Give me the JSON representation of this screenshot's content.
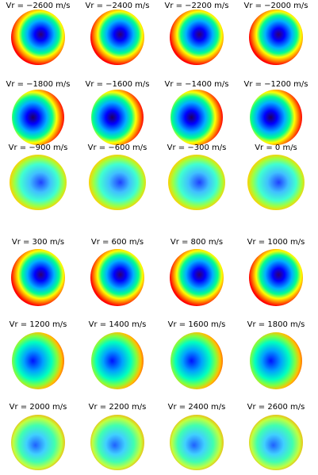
{
  "panels": [
    {
      "label": "Vr = −2600 m/s"
    },
    {
      "label": "Vr = −2400 m/s"
    },
    {
      "label": "Vr = −2200 m/s"
    },
    {
      "label": "Vr = −2000 m/s"
    },
    {
      "label": "Vr = −1800 m/s"
    },
    {
      "label": "Vr = −1600 m/s"
    },
    {
      "label": "Vr = −1400 m/s"
    },
    {
      "label": "Vr = −1200 m/s"
    },
    {
      "label": "Vr = −900 m/s"
    },
    {
      "label": "Vr = −600 m/s"
    },
    {
      "label": "Vr = −300 m/s"
    },
    {
      "label": "Vr = 0 m/s"
    },
    {
      "label": "Vr = 300 m/s"
    },
    {
      "label": "Vr = 600 m/s"
    },
    {
      "label": "Vr = 800 m/s"
    },
    {
      "label": "Vr = 1000 m/s"
    },
    {
      "label": "Vr = 1200 m/s"
    },
    {
      "label": "Vr = 1400 m/s"
    },
    {
      "label": "Vr = 1600 m/s"
    },
    {
      "label": "Vr = 1800 m/s"
    },
    {
      "label": "Vr = 2000 m/s"
    },
    {
      "label": "Vr = 2200 m/s"
    },
    {
      "label": "Vr = 2400 m/s"
    },
    {
      "label": "Vr = 2600 m/s"
    }
  ]
}
